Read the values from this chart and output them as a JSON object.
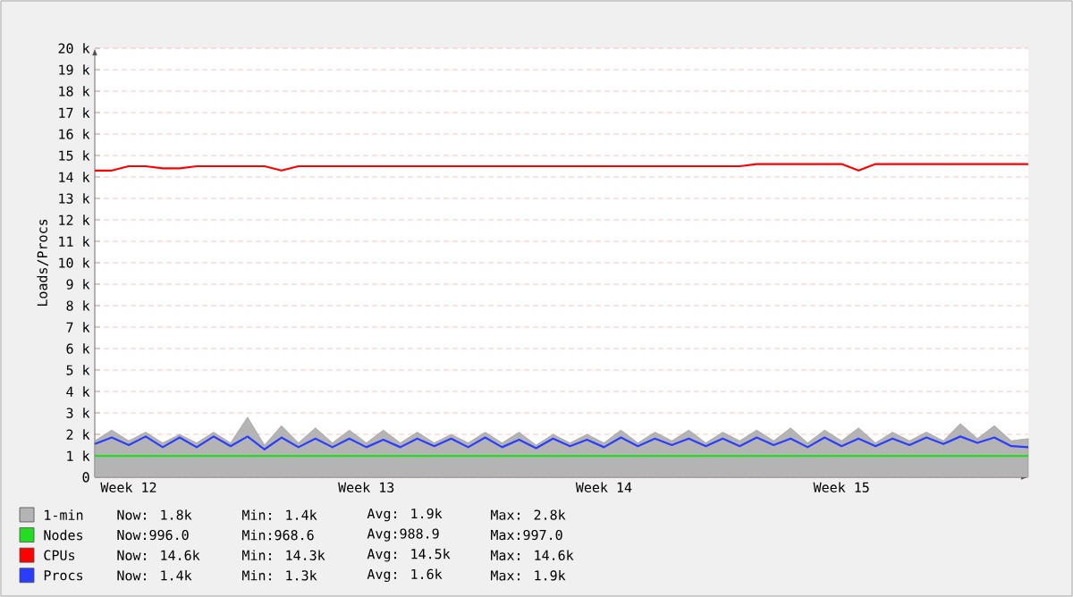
{
  "chart_data": {
    "type": "line",
    "ylabel": "Loads/Procs",
    "ylim": [
      0,
      20000
    ],
    "categories": [
      null,
      null,
      "Week 12",
      null,
      null,
      null,
      null,
      null,
      null,
      null,
      null,
      null,
      null,
      null,
      null,
      null,
      "Week 13",
      null,
      null,
      null,
      null,
      null,
      null,
      null,
      null,
      null,
      null,
      null,
      null,
      null,
      "Week 14",
      null,
      null,
      null,
      null,
      null,
      null,
      null,
      null,
      null,
      null,
      null,
      null,
      null,
      "Week 15",
      null,
      null,
      null,
      null,
      null,
      null,
      null,
      null,
      null,
      null,
      null
    ],
    "yticks": [
      0,
      {
        "value": 1000,
        "label": "1 k"
      },
      {
        "value": 2000,
        "label": "2 k"
      },
      {
        "value": 3000,
        "label": "3 k"
      },
      {
        "value": 4000,
        "label": "4 k"
      },
      {
        "value": 5000,
        "label": "5 k"
      },
      {
        "value": 6000,
        "label": "6 k"
      },
      {
        "value": 7000,
        "label": "7 k"
      },
      {
        "value": 8000,
        "label": "8 k"
      },
      {
        "value": 9000,
        "label": "9 k"
      },
      {
        "value": 10000,
        "label": "10 k"
      },
      {
        "value": 11000,
        "label": "11 k"
      },
      {
        "value": 12000,
        "label": "12 k"
      },
      {
        "value": 13000,
        "label": "13 k"
      },
      {
        "value": 14000,
        "label": "14 k"
      },
      {
        "value": 15000,
        "label": "15 k"
      },
      {
        "value": 16000,
        "label": "16 k"
      },
      {
        "value": 17000,
        "label": "17 k"
      },
      {
        "value": 18000,
        "label": "18 k"
      },
      {
        "value": 19000,
        "label": "19 k"
      },
      {
        "value": 20000,
        "label": "20 k"
      }
    ],
    "grid": "y",
    "legend": "bottom",
    "marker": "none",
    "series": [
      {
        "name": "1-min",
        "type": "area",
        "color": "#b4b4b4",
        "values": [
          1700,
          2200,
          1700,
          2100,
          1600,
          2000,
          1600,
          2100,
          1600,
          2800,
          1500,
          2400,
          1600,
          2300,
          1600,
          2200,
          1600,
          2200,
          1600,
          2100,
          1600,
          2000,
          1600,
          2100,
          1600,
          2100,
          1500,
          2000,
          1600,
          2000,
          1600,
          2200,
          1600,
          2100,
          1700,
          2200,
          1600,
          2100,
          1700,
          2200,
          1700,
          2300,
          1600,
          2200,
          1700,
          2300,
          1600,
          2100,
          1700,
          2100,
          1700,
          2500,
          1800,
          2400,
          1700,
          1800
        ]
      },
      {
        "name": "Nodes",
        "color": "#22dd22",
        "values": [
          990,
          990,
          990,
          990,
          990,
          990,
          990,
          990,
          990,
          990,
          990,
          990,
          990,
          990,
          990,
          990,
          990,
          990,
          990,
          990,
          990,
          990,
          990,
          990,
          990,
          990,
          990,
          990,
          990,
          990,
          990,
          990,
          990,
          990,
          990,
          990,
          990,
          990,
          990,
          990,
          990,
          990,
          990,
          990,
          990,
          990,
          990,
          990,
          990,
          990,
          995,
          995,
          995,
          995,
          995,
          996
        ]
      },
      {
        "name": "CPUs",
        "color": "#ff0000",
        "values": [
          14300,
          14300,
          14500,
          14500,
          14400,
          14400,
          14500,
          14500,
          14500,
          14500,
          14500,
          14300,
          14500,
          14500,
          14500,
          14500,
          14500,
          14500,
          14500,
          14500,
          14500,
          14500,
          14500,
          14500,
          14500,
          14500,
          14500,
          14500,
          14500,
          14500,
          14500,
          14500,
          14500,
          14500,
          14500,
          14500,
          14500,
          14500,
          14500,
          14600,
          14600,
          14600,
          14600,
          14600,
          14600,
          14300,
          14600,
          14600,
          14600,
          14600,
          14600,
          14600,
          14600,
          14600,
          14600,
          14600
        ]
      },
      {
        "name": "Procs",
        "color": "#2a3cff",
        "values": [
          1550,
          1850,
          1500,
          1900,
          1400,
          1850,
          1400,
          1900,
          1450,
          1900,
          1300,
          1850,
          1400,
          1800,
          1400,
          1800,
          1400,
          1750,
          1400,
          1800,
          1450,
          1800,
          1400,
          1850,
          1400,
          1750,
          1350,
          1800,
          1450,
          1750,
          1400,
          1850,
          1450,
          1800,
          1500,
          1800,
          1450,
          1800,
          1450,
          1850,
          1500,
          1800,
          1400,
          1850,
          1450,
          1800,
          1450,
          1800,
          1500,
          1850,
          1550,
          1900,
          1600,
          1850,
          1450,
          1400
        ]
      }
    ],
    "annotations": [
      "Now: 1.8k",
      "Min: 1.4k",
      "Avg: 1.9k",
      "Max: 2.8k",
      "Now:996.0",
      "Min:968.6",
      "Avg:988.9",
      "Max:997.0",
      "Now: 14.6k",
      "Min: 14.3k",
      "Avg: 14.5k",
      "Max: 14.6k",
      "Now: 1.4k",
      "Min: 1.3k",
      "Avg: 1.6k",
      "Max: 1.9k"
    ]
  }
}
